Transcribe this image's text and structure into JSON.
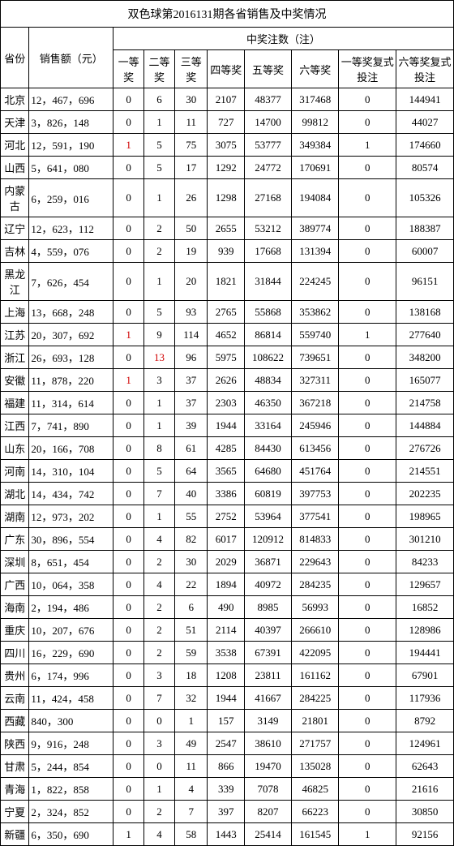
{
  "title": "双色球第2016131期各省销售及中奖情况",
  "headers": {
    "province": "省份",
    "sales": "销售额（元）",
    "prize_group": "中奖注数（注）",
    "cols": [
      "一等奖",
      "二等奖",
      "三等奖",
      "四等奖",
      "五等奖",
      "六等奖",
      "一等奖复式投注",
      "六等奖复式投注"
    ]
  },
  "style": {
    "background_color": "#ffffff",
    "border_color": "#000000",
    "text_color": "#000000",
    "highlight_color": "#d00000",
    "font_family": "SimSun",
    "title_fontsize": 14,
    "body_fontsize": 13
  },
  "red_cells": [
    {
      "row": 2,
      "col": 0
    },
    {
      "row": 9,
      "col": 0
    },
    {
      "row": 10,
      "col": 1
    },
    {
      "row": 11,
      "col": 0
    },
    {
      "row": 32,
      "col": 0
    }
  ],
  "rows": [
    {
      "prov": "北京",
      "sales": "12，467，696",
      "v": [
        "0",
        "6",
        "30",
        "2107",
        "48377",
        "317468",
        "0",
        "144941"
      ]
    },
    {
      "prov": "天津",
      "sales": "3，826，148",
      "v": [
        "0",
        "1",
        "11",
        "727",
        "14700",
        "99812",
        "0",
        "44027"
      ]
    },
    {
      "prov": "河北",
      "sales": "12，591，190",
      "v": [
        "1",
        "5",
        "75",
        "3075",
        "53777",
        "349384",
        "1",
        "174660"
      ]
    },
    {
      "prov": "山西",
      "sales": "5，641，080",
      "v": [
        "0",
        "5",
        "17",
        "1292",
        "24772",
        "170691",
        "0",
        "80574"
      ]
    },
    {
      "prov": "内蒙古",
      "sales": "6，259，016",
      "v": [
        "0",
        "1",
        "26",
        "1298",
        "27168",
        "194084",
        "0",
        "105326"
      ]
    },
    {
      "prov": "辽宁",
      "sales": "12，623，112",
      "v": [
        "0",
        "2",
        "50",
        "2655",
        "53212",
        "389774",
        "0",
        "188387"
      ]
    },
    {
      "prov": "吉林",
      "sales": "4，559，076",
      "v": [
        "0",
        "2",
        "19",
        "939",
        "17668",
        "131394",
        "0",
        "60007"
      ]
    },
    {
      "prov": "黑龙江",
      "sales": "7，626，454",
      "v": [
        "0",
        "1",
        "20",
        "1821",
        "31844",
        "224245",
        "0",
        "96151"
      ]
    },
    {
      "prov": "上海",
      "sales": "13，668，248",
      "v": [
        "0",
        "5",
        "93",
        "2765",
        "55868",
        "353862",
        "0",
        "138168"
      ]
    },
    {
      "prov": "江苏",
      "sales": "20，307，692",
      "v": [
        "1",
        "9",
        "114",
        "4652",
        "86814",
        "559740",
        "1",
        "277640"
      ]
    },
    {
      "prov": "浙江",
      "sales": "26，693，128",
      "v": [
        "0",
        "13",
        "96",
        "5975",
        "108622",
        "739651",
        "0",
        "348200"
      ]
    },
    {
      "prov": "安徽",
      "sales": "11，878，220",
      "v": [
        "1",
        "3",
        "37",
        "2626",
        "48834",
        "327311",
        "0",
        "165077"
      ]
    },
    {
      "prov": "福建",
      "sales": "11，314，614",
      "v": [
        "0",
        "1",
        "37",
        "2303",
        "46350",
        "367218",
        "0",
        "214758"
      ]
    },
    {
      "prov": "江西",
      "sales": "7，741，890",
      "v": [
        "0",
        "1",
        "39",
        "1944",
        "33164",
        "245946",
        "0",
        "144884"
      ]
    },
    {
      "prov": "山东",
      "sales": "20，166，708",
      "v": [
        "0",
        "8",
        "61",
        "4285",
        "84430",
        "613456",
        "0",
        "276726"
      ]
    },
    {
      "prov": "河南",
      "sales": "14，310，104",
      "v": [
        "0",
        "5",
        "64",
        "3565",
        "64680",
        "451764",
        "0",
        "214551"
      ]
    },
    {
      "prov": "湖北",
      "sales": "14，434，742",
      "v": [
        "0",
        "7",
        "40",
        "3386",
        "60819",
        "397753",
        "0",
        "202235"
      ]
    },
    {
      "prov": "湖南",
      "sales": "12，973，202",
      "v": [
        "0",
        "1",
        "55",
        "2752",
        "53964",
        "377541",
        "0",
        "198965"
      ]
    },
    {
      "prov": "广东",
      "sales": "30，896，554",
      "v": [
        "0",
        "4",
        "82",
        "6017",
        "120912",
        "814833",
        "0",
        "301210"
      ]
    },
    {
      "prov": "深圳",
      "sales": "8，651，454",
      "v": [
        "0",
        "2",
        "30",
        "2029",
        "36871",
        "229643",
        "0",
        "84233"
      ]
    },
    {
      "prov": "广西",
      "sales": "10，064，358",
      "v": [
        "0",
        "4",
        "22",
        "1894",
        "40972",
        "284235",
        "0",
        "129657"
      ]
    },
    {
      "prov": "海南",
      "sales": "2，194，486",
      "v": [
        "0",
        "2",
        "6",
        "490",
        "8985",
        "56993",
        "0",
        "16852"
      ]
    },
    {
      "prov": "重庆",
      "sales": "10，207，676",
      "v": [
        "0",
        "2",
        "51",
        "2114",
        "40397",
        "266610",
        "0",
        "128986"
      ]
    },
    {
      "prov": "四川",
      "sales": "16，229，690",
      "v": [
        "0",
        "2",
        "59",
        "3538",
        "67391",
        "422095",
        "0",
        "194441"
      ]
    },
    {
      "prov": "贵州",
      "sales": "6，174，996",
      "v": [
        "0",
        "3",
        "18",
        "1208",
        "23811",
        "161162",
        "0",
        "67901"
      ]
    },
    {
      "prov": "云南",
      "sales": "11，424，458",
      "v": [
        "0",
        "7",
        "32",
        "1944",
        "41667",
        "284225",
        "0",
        "117936"
      ]
    },
    {
      "prov": "西藏",
      "sales": "840，300",
      "v": [
        "0",
        "0",
        "1",
        "157",
        "3149",
        "21801",
        "0",
        "8792"
      ]
    },
    {
      "prov": "陕西",
      "sales": "9，916，248",
      "v": [
        "0",
        "3",
        "49",
        "2547",
        "38610",
        "271757",
        "0",
        "124961"
      ]
    },
    {
      "prov": "甘肃",
      "sales": "5，244，854",
      "v": [
        "0",
        "0",
        "11",
        "866",
        "19470",
        "135028",
        "0",
        "62643"
      ]
    },
    {
      "prov": "青海",
      "sales": "1，822，858",
      "v": [
        "0",
        "1",
        "4",
        "339",
        "7078",
        "46825",
        "0",
        "21616"
      ]
    },
    {
      "prov": "宁夏",
      "sales": "2，324，852",
      "v": [
        "0",
        "2",
        "7",
        "397",
        "8207",
        "66223",
        "0",
        "30850"
      ]
    },
    {
      "prov": "新疆",
      "sales": "6，350，690",
      "v": [
        "1",
        "4",
        "58",
        "1443",
        "25414",
        "161545",
        "1",
        "92156"
      ]
    }
  ]
}
